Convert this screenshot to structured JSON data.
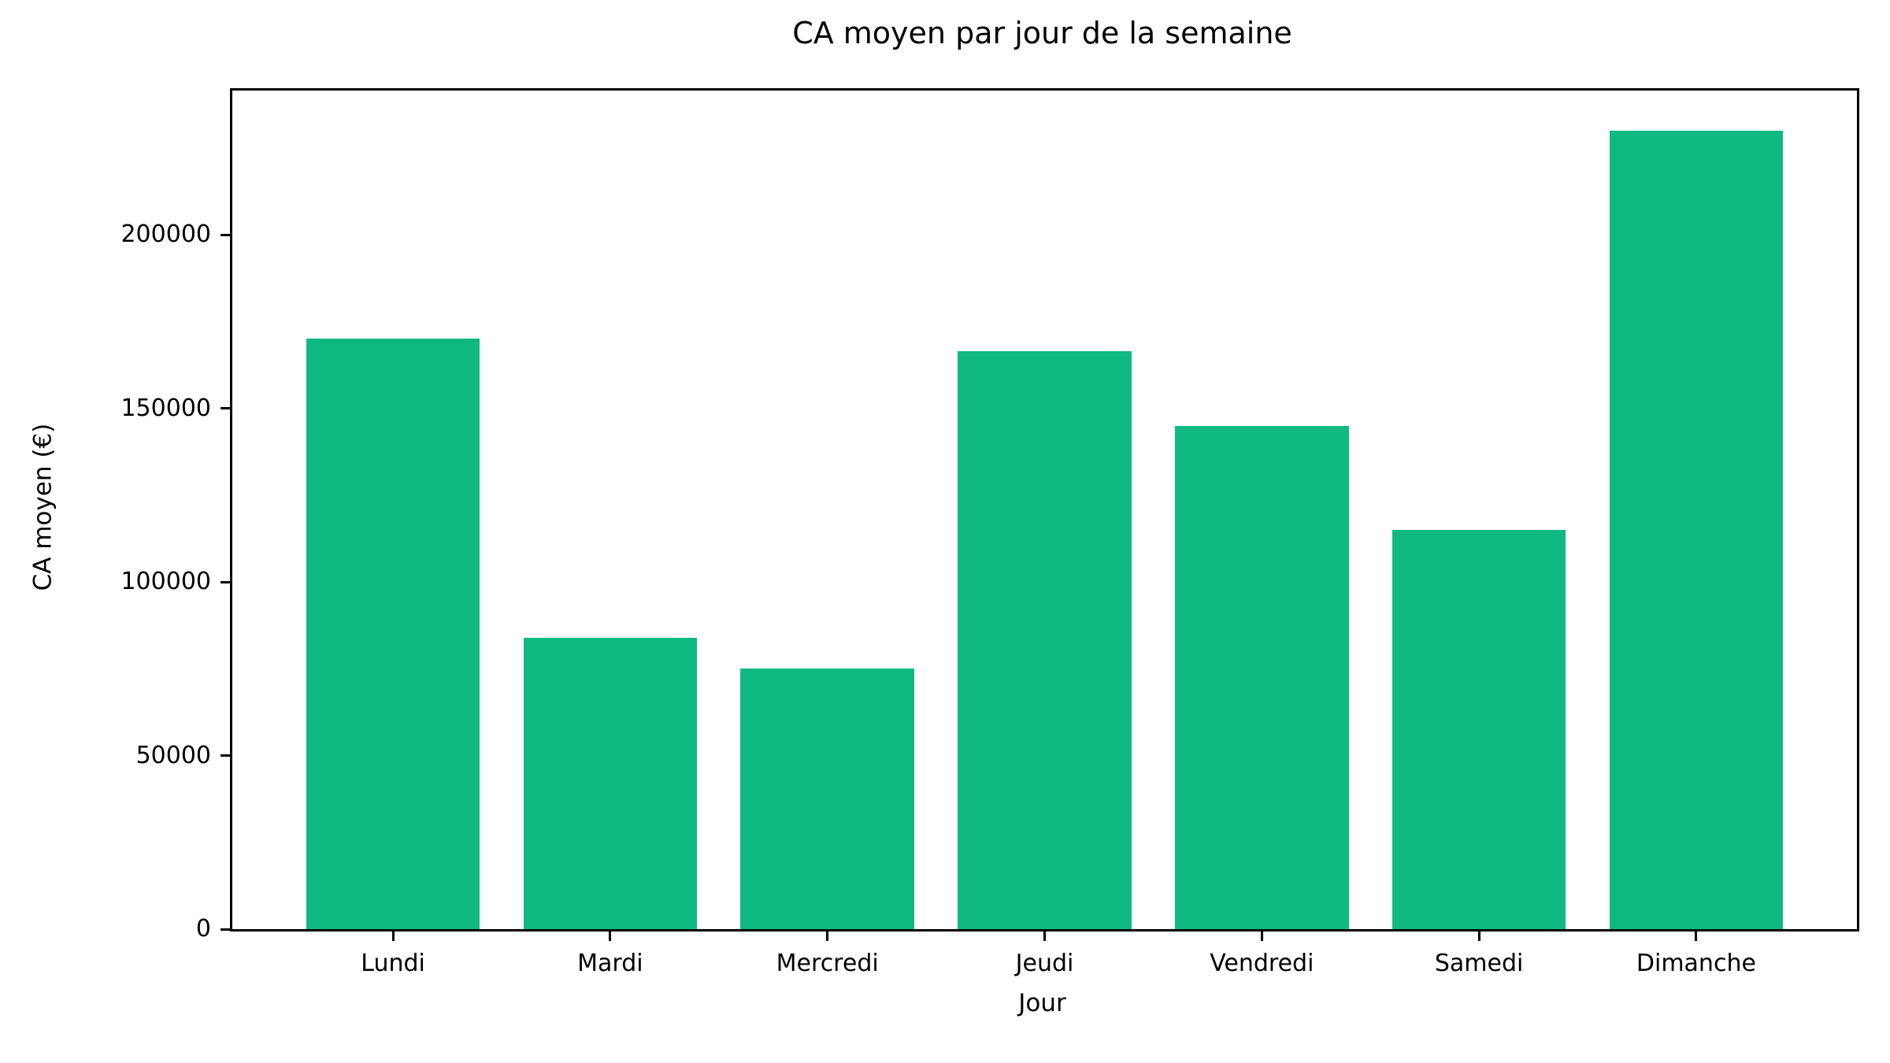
{
  "chart_data": {
    "type": "bar",
    "title": "CA moyen par jour de la semaine",
    "xlabel": "Jour",
    "ylabel": "CA moyen (€)",
    "categories": [
      "Lundi",
      "Mardi",
      "Mercredi",
      "Jeudi",
      "Vendredi",
      "Samedi",
      "Dimanche"
    ],
    "values": [
      170000,
      84000,
      75000,
      166500,
      145000,
      115000,
      230000
    ],
    "ylim": [
      0,
      241500
    ],
    "yticks": [
      0,
      50000,
      100000,
      150000,
      200000
    ],
    "ytick_labels": [
      "0",
      "50000",
      "100000",
      "150000",
      "200000"
    ],
    "bar_color": "#10b981",
    "background_color": "#ffffff",
    "text_color": "#000000",
    "grid": false,
    "legend_position": "none",
    "bar_width_fraction": 0.8
  }
}
